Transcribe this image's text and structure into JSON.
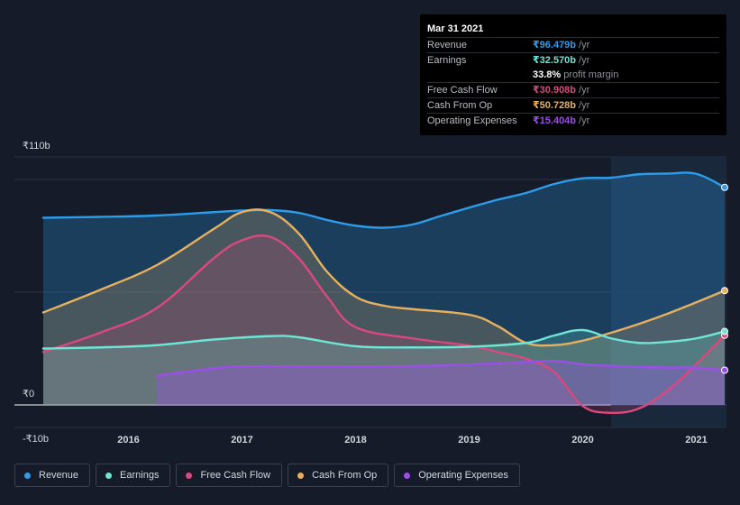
{
  "colors": {
    "background": "#151b28",
    "revenue": "#2d9cea",
    "earnings": "#6ee6d6",
    "free_cash_flow": "#d9497e",
    "cash_from_op": "#e6b05e",
    "operating_expenses": "#9b4fe6"
  },
  "tooltip": {
    "date": "Mar 31 2021",
    "rows": [
      {
        "label": "Revenue",
        "value": "₹96.479b",
        "unit": "/yr",
        "color": "#2d9cea"
      },
      {
        "label": "Earnings",
        "value": "₹32.570b",
        "unit": "/yr",
        "color": "#6ee6d6"
      },
      {
        "label": "Free Cash Flow",
        "value": "₹30.908b",
        "unit": "/yr",
        "color": "#d9497e"
      },
      {
        "label": "Cash From Op",
        "value": "₹50.728b",
        "unit": "/yr",
        "color": "#e6b05e"
      },
      {
        "label": "Operating Expenses",
        "value": "₹15.404b",
        "unit": "/yr",
        "color": "#9b4fe6"
      }
    ],
    "profit_margin_value": "33.8%",
    "profit_margin_label": "profit margin"
  },
  "legend": [
    {
      "label": "Revenue",
      "color": "#2d9cea"
    },
    {
      "label": "Earnings",
      "color": "#6ee6d6"
    },
    {
      "label": "Free Cash Flow",
      "color": "#d9497e"
    },
    {
      "label": "Cash From Op",
      "color": "#e6b05e"
    },
    {
      "label": "Operating Expenses",
      "color": "#9b4fe6"
    }
  ],
  "chart_data": {
    "type": "area",
    "title": "",
    "xlabel": "",
    "ylabel": "",
    "y_unit": "₹b",
    "ylim": [
      -10,
      110
    ],
    "xlim": [
      2015.25,
      2021.25
    ],
    "y_tick_labels": [
      {
        "value": 110,
        "label": "₹110b"
      },
      {
        "value": 0,
        "label": "₹0"
      },
      {
        "value": -10,
        "label": "-₹10b"
      }
    ],
    "x_ticks": [
      {
        "value": 2016,
        "label": "2016"
      },
      {
        "value": 2017,
        "label": "2017"
      },
      {
        "value": 2018,
        "label": "2018"
      },
      {
        "value": 2019,
        "label": "2019"
      },
      {
        "value": 2020,
        "label": "2020"
      },
      {
        "value": 2021,
        "label": "2021"
      }
    ],
    "highlight_range": [
      2020.25,
      2021.25
    ],
    "series": [
      {
        "name": "Revenue",
        "key": "revenue",
        "points": [
          [
            2015.25,
            83
          ],
          [
            2015.75,
            83.4
          ],
          [
            2016.25,
            84
          ],
          [
            2016.75,
            85.5
          ],
          [
            2017.0,
            86.2
          ],
          [
            2017.25,
            86.4
          ],
          [
            2017.5,
            85.2
          ],
          [
            2017.75,
            82
          ],
          [
            2018.0,
            79.5
          ],
          [
            2018.25,
            78.6
          ],
          [
            2018.5,
            80
          ],
          [
            2018.75,
            83.8
          ],
          [
            2019.0,
            87.5
          ],
          [
            2019.25,
            91
          ],
          [
            2019.5,
            94
          ],
          [
            2019.75,
            98
          ],
          [
            2020.0,
            100.5
          ],
          [
            2020.25,
            100.8
          ],
          [
            2020.5,
            102.3
          ],
          [
            2020.75,
            102.6
          ],
          [
            2021.0,
            102.5
          ],
          [
            2021.25,
            96.5
          ]
        ]
      },
      {
        "name": "Earnings",
        "key": "earnings",
        "points": [
          [
            2015.25,
            25
          ],
          [
            2015.75,
            25.5
          ],
          [
            2016.25,
            26.5
          ],
          [
            2016.75,
            29
          ],
          [
            2017.25,
            30.5
          ],
          [
            2017.5,
            30
          ],
          [
            2018.0,
            26
          ],
          [
            2018.5,
            25.5
          ],
          [
            2019.0,
            25.8
          ],
          [
            2019.5,
            27.5
          ],
          [
            2019.75,
            30.8
          ],
          [
            2020.0,
            33.2
          ],
          [
            2020.25,
            29.5
          ],
          [
            2020.5,
            27.5
          ],
          [
            2020.75,
            28
          ],
          [
            2021.0,
            29.5
          ],
          [
            2021.25,
            32.6
          ]
        ]
      },
      {
        "name": "Free Cash Flow",
        "key": "free_cash_flow",
        "points": [
          [
            2015.25,
            23.5
          ],
          [
            2015.75,
            32
          ],
          [
            2016.25,
            43
          ],
          [
            2016.75,
            65
          ],
          [
            2017.0,
            73
          ],
          [
            2017.25,
            74.5
          ],
          [
            2017.5,
            65
          ],
          [
            2017.75,
            48
          ],
          [
            2018.0,
            34.5
          ],
          [
            2018.5,
            29.5
          ],
          [
            2019.0,
            26.3
          ],
          [
            2019.25,
            23.5
          ],
          [
            2019.5,
            20.5
          ],
          [
            2019.75,
            14.5
          ],
          [
            2020.0,
            -0.5
          ],
          [
            2020.25,
            -3.5
          ],
          [
            2020.5,
            -1.5
          ],
          [
            2020.75,
            6.5
          ],
          [
            2021.0,
            18
          ],
          [
            2021.25,
            30.9
          ]
        ]
      },
      {
        "name": "Cash From Op",
        "key": "cash_from_op",
        "points": [
          [
            2015.25,
            41
          ],
          [
            2015.75,
            51
          ],
          [
            2016.25,
            62
          ],
          [
            2016.75,
            78
          ],
          [
            2017.0,
            85.5
          ],
          [
            2017.25,
            85.5
          ],
          [
            2017.5,
            76
          ],
          [
            2017.75,
            59
          ],
          [
            2018.0,
            48
          ],
          [
            2018.25,
            44
          ],
          [
            2018.5,
            42.5
          ],
          [
            2019.0,
            40
          ],
          [
            2019.25,
            35
          ],
          [
            2019.5,
            27.5
          ],
          [
            2019.75,
            26.5
          ],
          [
            2020.0,
            28.5
          ],
          [
            2020.25,
            32
          ],
          [
            2020.5,
            36
          ],
          [
            2020.75,
            40.5
          ],
          [
            2021.0,
            45.5
          ],
          [
            2021.25,
            50.7
          ]
        ]
      },
      {
        "name": "Operating Expenses",
        "key": "operating_expenses",
        "points": [
          [
            2016.25,
            13
          ],
          [
            2016.75,
            16.2
          ],
          [
            2017.0,
            17.1
          ],
          [
            2017.5,
            17.1
          ],
          [
            2018.0,
            17
          ],
          [
            2018.5,
            17.2
          ],
          [
            2019.0,
            17.9
          ],
          [
            2019.5,
            19
          ],
          [
            2019.75,
            19.5
          ],
          [
            2020.0,
            18
          ],
          [
            2020.25,
            17.3
          ],
          [
            2020.5,
            16.8
          ],
          [
            2020.75,
            16.6
          ],
          [
            2021.0,
            16.5
          ],
          [
            2021.25,
            15.4
          ]
        ]
      }
    ]
  }
}
